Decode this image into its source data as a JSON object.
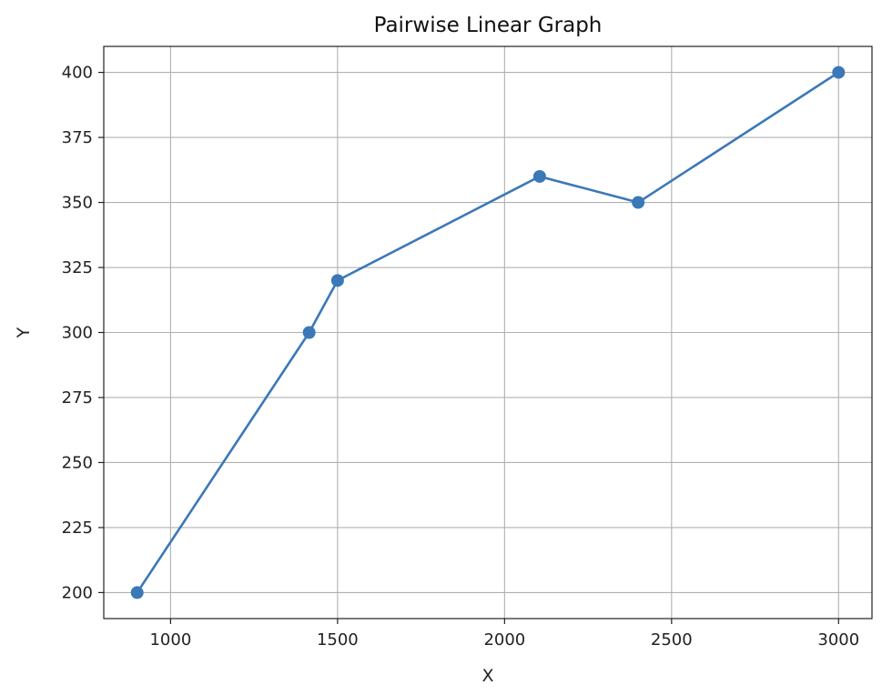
{
  "chart_data": {
    "type": "line",
    "title": "Pairwise Linear Graph",
    "xlabel": "X",
    "ylabel": "Y",
    "xlim": [
      800,
      3100
    ],
    "ylim": [
      190,
      410
    ],
    "xticks": [
      1000,
      1500,
      2000,
      2500,
      3000
    ],
    "yticks": [
      200,
      225,
      250,
      275,
      300,
      325,
      350,
      375,
      400
    ],
    "grid": true,
    "series": [
      {
        "x": [
          900,
          1415,
          1500,
          2105,
          2400,
          3000
        ],
        "y": [
          200,
          300,
          320,
          360,
          350,
          400
        ],
        "color": "#3b78b8",
        "marker": "circle"
      }
    ]
  }
}
